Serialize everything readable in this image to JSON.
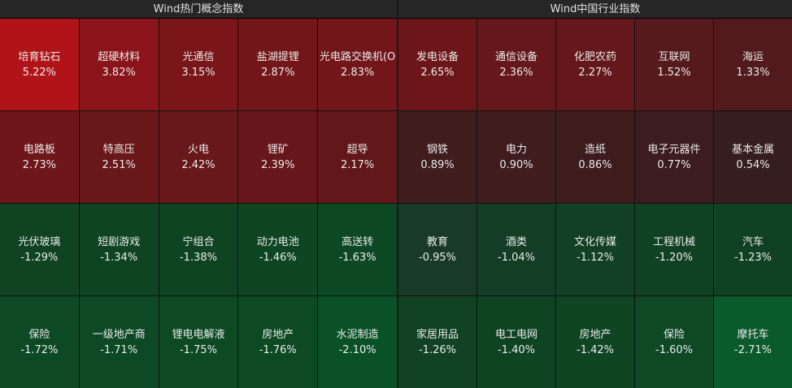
{
  "panels": [
    {
      "title": "Wind热门概念指数",
      "cells": [
        {
          "name": "培育钻石",
          "change": "5.22%",
          "color": "#b01418"
        },
        {
          "name": "超硬材料",
          "change": "3.82%",
          "color": "#8a1419"
        },
        {
          "name": "光通信",
          "change": "3.15%",
          "color": "#7a1519"
        },
        {
          "name": "盐湖提锂",
          "change": "2.87%",
          "color": "#731619"
        },
        {
          "name": "光电路交换机(O",
          "change": "2.83%",
          "color": "#721619"
        },
        {
          "name": "电路板",
          "change": "2.73%",
          "color": "#6f161a"
        },
        {
          "name": "特高压",
          "change": "2.51%",
          "color": "#6a171a"
        },
        {
          "name": "火电",
          "change": "2.42%",
          "color": "#68171b"
        },
        {
          "name": "锂矿",
          "change": "2.39%",
          "color": "#67171b"
        },
        {
          "name": "超导",
          "change": "2.17%",
          "color": "#62181b"
        },
        {
          "name": "光伏玻璃",
          "change": "-1.29%",
          "color": "#0f4322"
        },
        {
          "name": "短剧游戏",
          "change": "-1.34%",
          "color": "#0f4422"
        },
        {
          "name": "宁组合",
          "change": "-1.38%",
          "color": "#0f4422"
        },
        {
          "name": "动力电池",
          "change": "-1.46%",
          "color": "#0e4523"
        },
        {
          "name": "高送转",
          "change": "-1.63%",
          "color": "#0d4824"
        },
        {
          "name": "保险",
          "change": "-1.72%",
          "color": "#0d4924"
        },
        {
          "name": "一级地产商",
          "change": "-1.71%",
          "color": "#0d4924"
        },
        {
          "name": "锂电电解液",
          "change": "-1.75%",
          "color": "#0d4a24"
        },
        {
          "name": "房地产",
          "change": "-1.76%",
          "color": "#0d4a24"
        },
        {
          "name": "水泥制造",
          "change": "-2.10%",
          "color": "#0b5128"
        }
      ]
    },
    {
      "title": "Wind中国行业指数",
      "cells": [
        {
          "name": "发电设备",
          "change": "2.65%",
          "color": "#6d161a"
        },
        {
          "name": "通信设备",
          "change": "2.36%",
          "color": "#66171b"
        },
        {
          "name": "化肥农药",
          "change": "2.27%",
          "color": "#64181b"
        },
        {
          "name": "互联网",
          "change": "1.52%",
          "color": "#561a1c"
        },
        {
          "name": "海运",
          "change": "1.33%",
          "color": "#521a1d"
        },
        {
          "name": "钢铁",
          "change": "0.89%",
          "color": "#3f1c1e"
        },
        {
          "name": "电力",
          "change": "0.90%",
          "color": "#3f1c1e"
        },
        {
          "name": "造纸",
          "change": "0.86%",
          "color": "#3e1c1e"
        },
        {
          "name": "电子元器件",
          "change": "0.77%",
          "color": "#3c1c1e"
        },
        {
          "name": "基本金属",
          "change": "0.54%",
          "color": "#361d1f"
        },
        {
          "name": "教育",
          "change": "-0.95%",
          "color": "#1a3a28"
        },
        {
          "name": "酒类",
          "change": "-1.04%",
          "color": "#133e25"
        },
        {
          "name": "文化传媒",
          "change": "-1.12%",
          "color": "#124024"
        },
        {
          "name": "工程机械",
          "change": "-1.20%",
          "color": "#114123"
        },
        {
          "name": "汽车",
          "change": "-1.23%",
          "color": "#114123"
        },
        {
          "name": "家居用品",
          "change": "-1.26%",
          "color": "#104223"
        },
        {
          "name": "电工电网",
          "change": "-1.40%",
          "color": "#0f4423"
        },
        {
          "name": "房地产",
          "change": "-1.42%",
          "color": "#0f4523"
        },
        {
          "name": "保险",
          "change": "-1.60%",
          "color": "#0e4824"
        },
        {
          "name": "摩托车",
          "change": "-2.71%",
          "color": "#0a5a2c"
        }
      ]
    }
  ]
}
